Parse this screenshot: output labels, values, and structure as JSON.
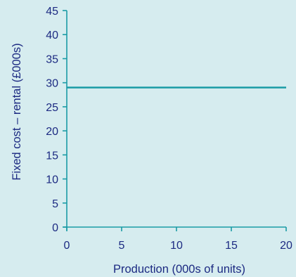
{
  "colors": {
    "background": "#d6ecef",
    "axis": "#1a9ba5",
    "text": "#1c2a82",
    "series_line": "#1a9ba5"
  },
  "chart_data": {
    "type": "line",
    "title": "",
    "xlabel": "Production (000s of units)",
    "ylabel": "Fixed cost – rental (£000s)",
    "xlim": [
      0,
      20
    ],
    "ylim": [
      0,
      45
    ],
    "x_ticks": [
      0,
      5,
      10,
      15,
      20
    ],
    "y_ticks": [
      0,
      5,
      10,
      15,
      20,
      25,
      30,
      35,
      40,
      45
    ],
    "grid": false,
    "legend": "none",
    "series": [
      {
        "x": [
          0,
          20
        ],
        "y": [
          29,
          29
        ]
      }
    ]
  }
}
